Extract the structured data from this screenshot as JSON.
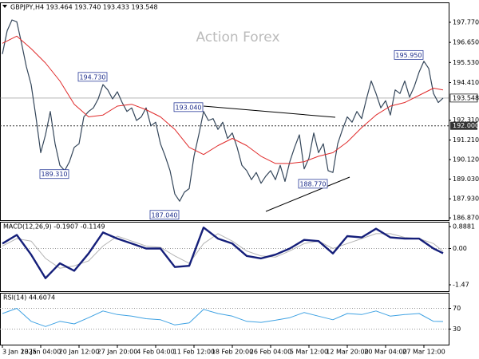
{
  "chart_data": [
    {
      "type": "line",
      "title": "GBPJPY,H4 193.464 193.740 193.433 193.548",
      "watermark": "Action Forex",
      "xlim": [
        -0.5,
        93.17
      ],
      "ylim": [
        186.74,
        198.88
      ],
      "yticks": [
        {
          "value": 197.77,
          "label": "197.770"
        },
        {
          "value": 196.65,
          "label": "196.650"
        },
        {
          "value": 195.53,
          "label": "195.530"
        },
        {
          "value": 194.41,
          "label": "194.410"
        },
        {
          "value": 192.31,
          "label": "192.310"
        },
        {
          "value": 191.21,
          "label": "191.210"
        },
        {
          "value": 190.12,
          "label": "190.120"
        },
        {
          "value": 189.03,
          "label": "189.030"
        },
        {
          "value": 187.93,
          "label": "187.930"
        },
        {
          "value": 186.87,
          "label": "186.870"
        }
      ],
      "last_price": 193.548,
      "level": {
        "value": 192,
        "label": "192.000"
      },
      "annotations": [
        {
          "x": 22,
          "value": 194.73,
          "label": "194.730"
        },
        {
          "x": 14,
          "value": 189.31,
          "label": "189.310"
        },
        {
          "x": 37,
          "value": 187.04,
          "label": "187.040"
        },
        {
          "x": 42,
          "value": 193.04,
          "label": "193.040"
        },
        {
          "x": 68,
          "value": 188.77,
          "label": "188.770"
        },
        {
          "x": 88,
          "value": 195.95,
          "label": "195.950"
        }
      ],
      "series": [
        {
          "color": "#34465a",
          "width": 1.2,
          "x": [
            0,
            1,
            2,
            3,
            4,
            5,
            6,
            7,
            8,
            9,
            10,
            11,
            12,
            13,
            14,
            15,
            16,
            17,
            18,
            19,
            20,
            21,
            22,
            23,
            24,
            25,
            26,
            27,
            28,
            29,
            30,
            31,
            32,
            33,
            34,
            35,
            36,
            37,
            38,
            39,
            40,
            41,
            42,
            43,
            44,
            45,
            46,
            47,
            48,
            49,
            50,
            51,
            52,
            53,
            54,
            55,
            56,
            57,
            58,
            59,
            60,
            61,
            62,
            63,
            64,
            65,
            66,
            67,
            68,
            69,
            70,
            71,
            72,
            73,
            74,
            75,
            76,
            77,
            78,
            79,
            80,
            81,
            82,
            83,
            84,
            85,
            86,
            87,
            88,
            89,
            90,
            91,
            92
          ],
          "values": [
            196.0,
            197.3,
            197.9,
            197.8,
            196.6,
            195.3,
            194.3,
            192.5,
            190.5,
            191.5,
            192.8,
            191.0,
            189.8,
            189.5,
            190.0,
            190.8,
            191.0,
            192.5,
            192.8,
            193.0,
            193.5,
            194.3,
            194.0,
            193.5,
            193.9,
            193.3,
            192.8,
            193.0,
            192.3,
            192.5,
            193.0,
            192.0,
            192.2,
            191.0,
            190.3,
            189.5,
            188.2,
            187.8,
            188.3,
            188.5,
            190.3,
            191.5,
            192.8,
            192.3,
            192.4,
            191.8,
            192.2,
            191.3,
            191.6,
            190.8,
            189.8,
            189.5,
            189.0,
            189.4,
            188.8,
            189.2,
            189.5,
            189.0,
            189.8,
            188.9,
            190.0,
            190.8,
            191.5,
            189.6,
            190.2,
            191.6,
            190.5,
            191.0,
            189.5,
            189.4,
            191.0,
            191.8,
            192.5,
            192.2,
            192.8,
            192.4,
            193.5,
            194.5,
            193.8,
            193.0,
            193.4,
            192.6,
            194.0,
            193.8,
            194.5,
            193.6,
            194.2,
            195.0,
            195.6,
            195.2,
            193.8,
            193.3,
            193.55
          ]
        },
        {
          "color": "#e02a2a",
          "width": 1,
          "x": [
            0,
            3,
            6,
            9,
            12,
            15,
            18,
            21,
            24,
            27,
            30,
            33,
            36,
            39,
            42,
            45,
            48,
            51,
            54,
            57,
            60,
            63,
            66,
            69,
            72,
            75,
            78,
            81,
            84,
            87,
            90,
            92
          ],
          "values": [
            196.6,
            197.0,
            196.3,
            195.5,
            194.5,
            193.2,
            192.5,
            192.6,
            193.1,
            193.2,
            192.9,
            192.5,
            191.8,
            190.8,
            190.4,
            190.9,
            191.3,
            190.9,
            190.3,
            189.9,
            189.9,
            190.0,
            190.3,
            190.5,
            191.1,
            191.9,
            192.6,
            193.1,
            193.3,
            193.7,
            194.1,
            194.0
          ]
        }
      ]
    },
    {
      "type": "line",
      "title": "MACD(12,26,9) -0.1907 -0.1149",
      "xlim": [
        -0.5,
        93.17
      ],
      "ylim": [
        -1.728,
        1.082
      ],
      "yticks": [
        0.8881,
        {
          "value": 0,
          "label": "0.00"
        },
        -1.47
      ],
      "dotted_ticks": [
        1
      ],
      "series": [
        {
          "color": "#b4b4b4",
          "width": 1,
          "x": [
            0,
            3,
            6,
            9,
            12,
            15,
            18,
            21,
            24,
            27,
            30,
            33,
            36,
            39,
            42,
            45,
            48,
            51,
            54,
            57,
            60,
            63,
            66,
            69,
            72,
            75,
            78,
            81,
            84,
            87,
            90,
            92
          ],
          "values": [
            0.1,
            0.4,
            0.3,
            -0.4,
            -0.8,
            -0.7,
            -0.5,
            0.1,
            0.5,
            0.3,
            0.1,
            0.05,
            -0.3,
            -0.6,
            0.2,
            0.6,
            0.3,
            -0.1,
            -0.3,
            -0.35,
            -0.1,
            0.2,
            0.3,
            0.0,
            0.2,
            0.4,
            0.6,
            0.6,
            0.45,
            0.4,
            0.2,
            -0.1149
          ]
        },
        {
          "color": "#151f7a",
          "width": 2.4,
          "x": [
            0,
            3,
            6,
            9,
            12,
            15,
            18,
            21,
            24,
            27,
            30,
            33,
            36,
            39,
            42,
            45,
            48,
            51,
            54,
            57,
            60,
            63,
            66,
            69,
            72,
            75,
            78,
            81,
            84,
            87,
            90,
            92
          ],
          "values": [
            0.2,
            0.55,
            -0.25,
            -1.2,
            -0.6,
            -0.9,
            -0.2,
            0.65,
            0.4,
            0.2,
            0.0,
            0.0,
            -0.75,
            -0.7,
            0.85,
            0.4,
            0.2,
            -0.3,
            -0.4,
            -0.25,
            0.0,
            0.35,
            0.3,
            -0.2,
            0.5,
            0.45,
            0.8,
            0.45,
            0.4,
            0.4,
            0.0,
            -0.1907
          ]
        }
      ]
    },
    {
      "type": "line",
      "title": "RSI(14) 44.6074",
      "xlim": [
        -0.5,
        93.17
      ],
      "ylim": [
        0,
        100
      ],
      "yticks": [
        70,
        30
      ],
      "dotted_ticks": [
        0,
        1
      ],
      "xticks": [
        {
          "value": 0,
          "label": "3 Jan 2025"
        },
        {
          "value": 8,
          "label": "13 Jan 04:00"
        },
        {
          "value": 16,
          "label": "20 Jan 12:00"
        },
        {
          "value": 24,
          "label": "27 Jan 20:00"
        },
        {
          "value": 32,
          "label": "4 Feb 04:00"
        },
        {
          "value": 40,
          "label": "11 Feb 12:00"
        },
        {
          "value": 48,
          "label": "18 Feb 20:00"
        },
        {
          "value": 56,
          "label": "26 Feb 04:00"
        },
        {
          "value": 64,
          "label": "5 Mar 12:00"
        },
        {
          "value": 72,
          "label": "12 Mar 20:00"
        },
        {
          "value": 80,
          "label": "20 Mar 04:00"
        },
        {
          "value": 88,
          "label": "27 Mar 12:00"
        }
      ],
      "series": [
        {
          "color": "#3fa2e3",
          "width": 1,
          "x": [
            0,
            3,
            6,
            9,
            12,
            15,
            18,
            21,
            24,
            27,
            30,
            33,
            36,
            39,
            42,
            45,
            48,
            51,
            54,
            57,
            60,
            63,
            66,
            69,
            72,
            75,
            78,
            81,
            84,
            87,
            90,
            92
          ],
          "values": [
            60,
            70,
            45,
            35,
            45,
            40,
            52,
            65,
            58,
            55,
            50,
            48,
            38,
            42,
            68,
            60,
            55,
            45,
            43,
            47,
            52,
            62,
            55,
            48,
            60,
            58,
            65,
            55,
            58,
            60,
            45,
            44.6074
          ]
        }
      ]
    }
  ]
}
